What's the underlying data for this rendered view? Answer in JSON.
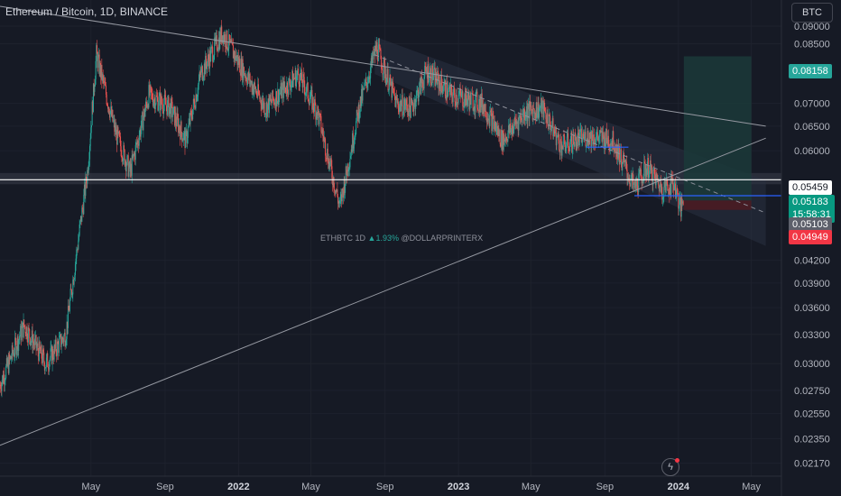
{
  "header": {
    "symbol_title": "Ethereum / Bitcoin, 1D, BINANCE",
    "currency_button": "BTC"
  },
  "watermark": {
    "symbol": "ETHBTC 1D",
    "change": "▲1.93%",
    "author": "@DOLLARPRINTERX"
  },
  "colors": {
    "background": "#161a25",
    "up": "#26a69a",
    "down": "#ef5350",
    "text": "#b2b5be",
    "grid": "#1e222d",
    "target_zone": "#1b3a39",
    "stop_zone": "#4a1c22",
    "level_line": "#ffffff",
    "blue_level": "#2962ff"
  },
  "icons": {
    "lightning": "lightning-icon"
  },
  "price_badges": {
    "target": "0.08158",
    "level": "0.05459",
    "last_price": "0.05183",
    "countdown": "15:58:31",
    "entry": "0.05103",
    "stop": "0.04949"
  },
  "chart_data": {
    "type": "candlestick",
    "symbol": "ETHBTC",
    "interval": "1D",
    "exchange": "BINANCE",
    "log_scale": true,
    "y_axis_ticks": [
      "0.09000",
      "0.08500",
      "0.07000",
      "0.06500",
      "0.06000",
      "0.04200",
      "0.03900",
      "0.03600",
      "0.03300",
      "0.03000",
      "0.02750",
      "0.02550",
      "0.02350",
      "0.02170"
    ],
    "ylim": [
      0.0208,
      0.098
    ],
    "x_axis_ticks": [
      "May",
      "Sep",
      "2022",
      "May",
      "Sep",
      "2023",
      "May",
      "Sep",
      "2024",
      "May"
    ],
    "xlim": [
      "2020-12-01",
      "2024-06-20"
    ],
    "price_path": [
      {
        "date": "2020-12-01",
        "close": 0.028
      },
      {
        "date": "2021-01-10",
        "close": 0.034
      },
      {
        "date": "2021-02-15",
        "close": 0.03
      },
      {
        "date": "2021-03-20",
        "close": 0.033
      },
      {
        "date": "2021-04-25",
        "close": 0.056
      },
      {
        "date": "2021-05-10",
        "close": 0.082
      },
      {
        "date": "2021-06-10",
        "close": 0.064
      },
      {
        "date": "2021-07-05",
        "close": 0.056
      },
      {
        "date": "2021-08-05",
        "close": 0.072
      },
      {
        "date": "2021-09-10",
        "close": 0.069
      },
      {
        "date": "2021-10-05",
        "close": 0.062
      },
      {
        "date": "2021-10-30",
        "close": 0.077
      },
      {
        "date": "2021-12-05",
        "close": 0.088
      },
      {
        "date": "2022-01-05",
        "close": 0.079
      },
      {
        "date": "2022-02-15",
        "close": 0.069
      },
      {
        "date": "2022-03-15",
        "close": 0.073
      },
      {
        "date": "2022-04-10",
        "close": 0.077
      },
      {
        "date": "2022-05-12",
        "close": 0.068
      },
      {
        "date": "2022-06-18",
        "close": 0.05
      },
      {
        "date": "2022-07-20",
        "close": 0.069
      },
      {
        "date": "2022-08-18",
        "close": 0.084
      },
      {
        "date": "2022-09-20",
        "close": 0.07
      },
      {
        "date": "2022-10-15",
        "close": 0.069
      },
      {
        "date": "2022-11-10",
        "close": 0.078
      },
      {
        "date": "2022-12-20",
        "close": 0.072
      },
      {
        "date": "2023-02-10",
        "close": 0.07
      },
      {
        "date": "2023-03-15",
        "close": 0.062
      },
      {
        "date": "2023-04-20",
        "close": 0.068
      },
      {
        "date": "2023-05-20",
        "close": 0.069
      },
      {
        "date": "2023-06-20",
        "close": 0.061
      },
      {
        "date": "2023-08-05",
        "close": 0.063
      },
      {
        "date": "2023-09-15",
        "close": 0.062
      },
      {
        "date": "2023-10-20",
        "close": 0.053
      },
      {
        "date": "2023-11-10",
        "close": 0.057
      },
      {
        "date": "2023-12-05",
        "close": 0.053
      },
      {
        "date": "2023-12-25",
        "close": 0.054
      },
      {
        "date": "2024-01-05",
        "close": 0.0495
      },
      {
        "date": "2024-01-10",
        "close": 0.0518
      }
    ],
    "horizontal_levels": [
      {
        "price": 0.05459,
        "color": "#ffffff"
      },
      {
        "price": 0.05183,
        "color": "#2962ff"
      }
    ],
    "resistance_zone": {
      "from": 0.0538,
      "to": 0.0558
    },
    "long_position": {
      "entry": 0.05103,
      "target": 0.08158,
      "stop": 0.04949
    },
    "trendlines": [
      {
        "from": {
          "date": "2020-12-01",
          "price": 0.096
        },
        "to": {
          "date": "2024-05-25",
          "price": 0.065
        }
      },
      {
        "from": {
          "date": "2020-12-01",
          "price": 0.023
        },
        "to": {
          "date": "2024-05-25",
          "price": 0.0625
        }
      }
    ],
    "descending_channel": {
      "upper": [
        {
          "date": "2022-08-15",
          "price": 0.087
        },
        {
          "date": "2024-05-25",
          "price": 0.0545
        }
      ],
      "lower": [
        {
          "date": "2022-08-15",
          "price": 0.077
        },
        {
          "date": "2024-05-25",
          "price": 0.044
        }
      ],
      "mid": [
        {
          "date": "2022-08-15",
          "price": 0.082
        },
        {
          "date": "2024-05-25",
          "price": 0.049
        }
      ]
    },
    "support_levels": [
      {
        "from": "2023-08-01",
        "to": "2023-10-10",
        "price": 0.0607
      }
    ]
  }
}
